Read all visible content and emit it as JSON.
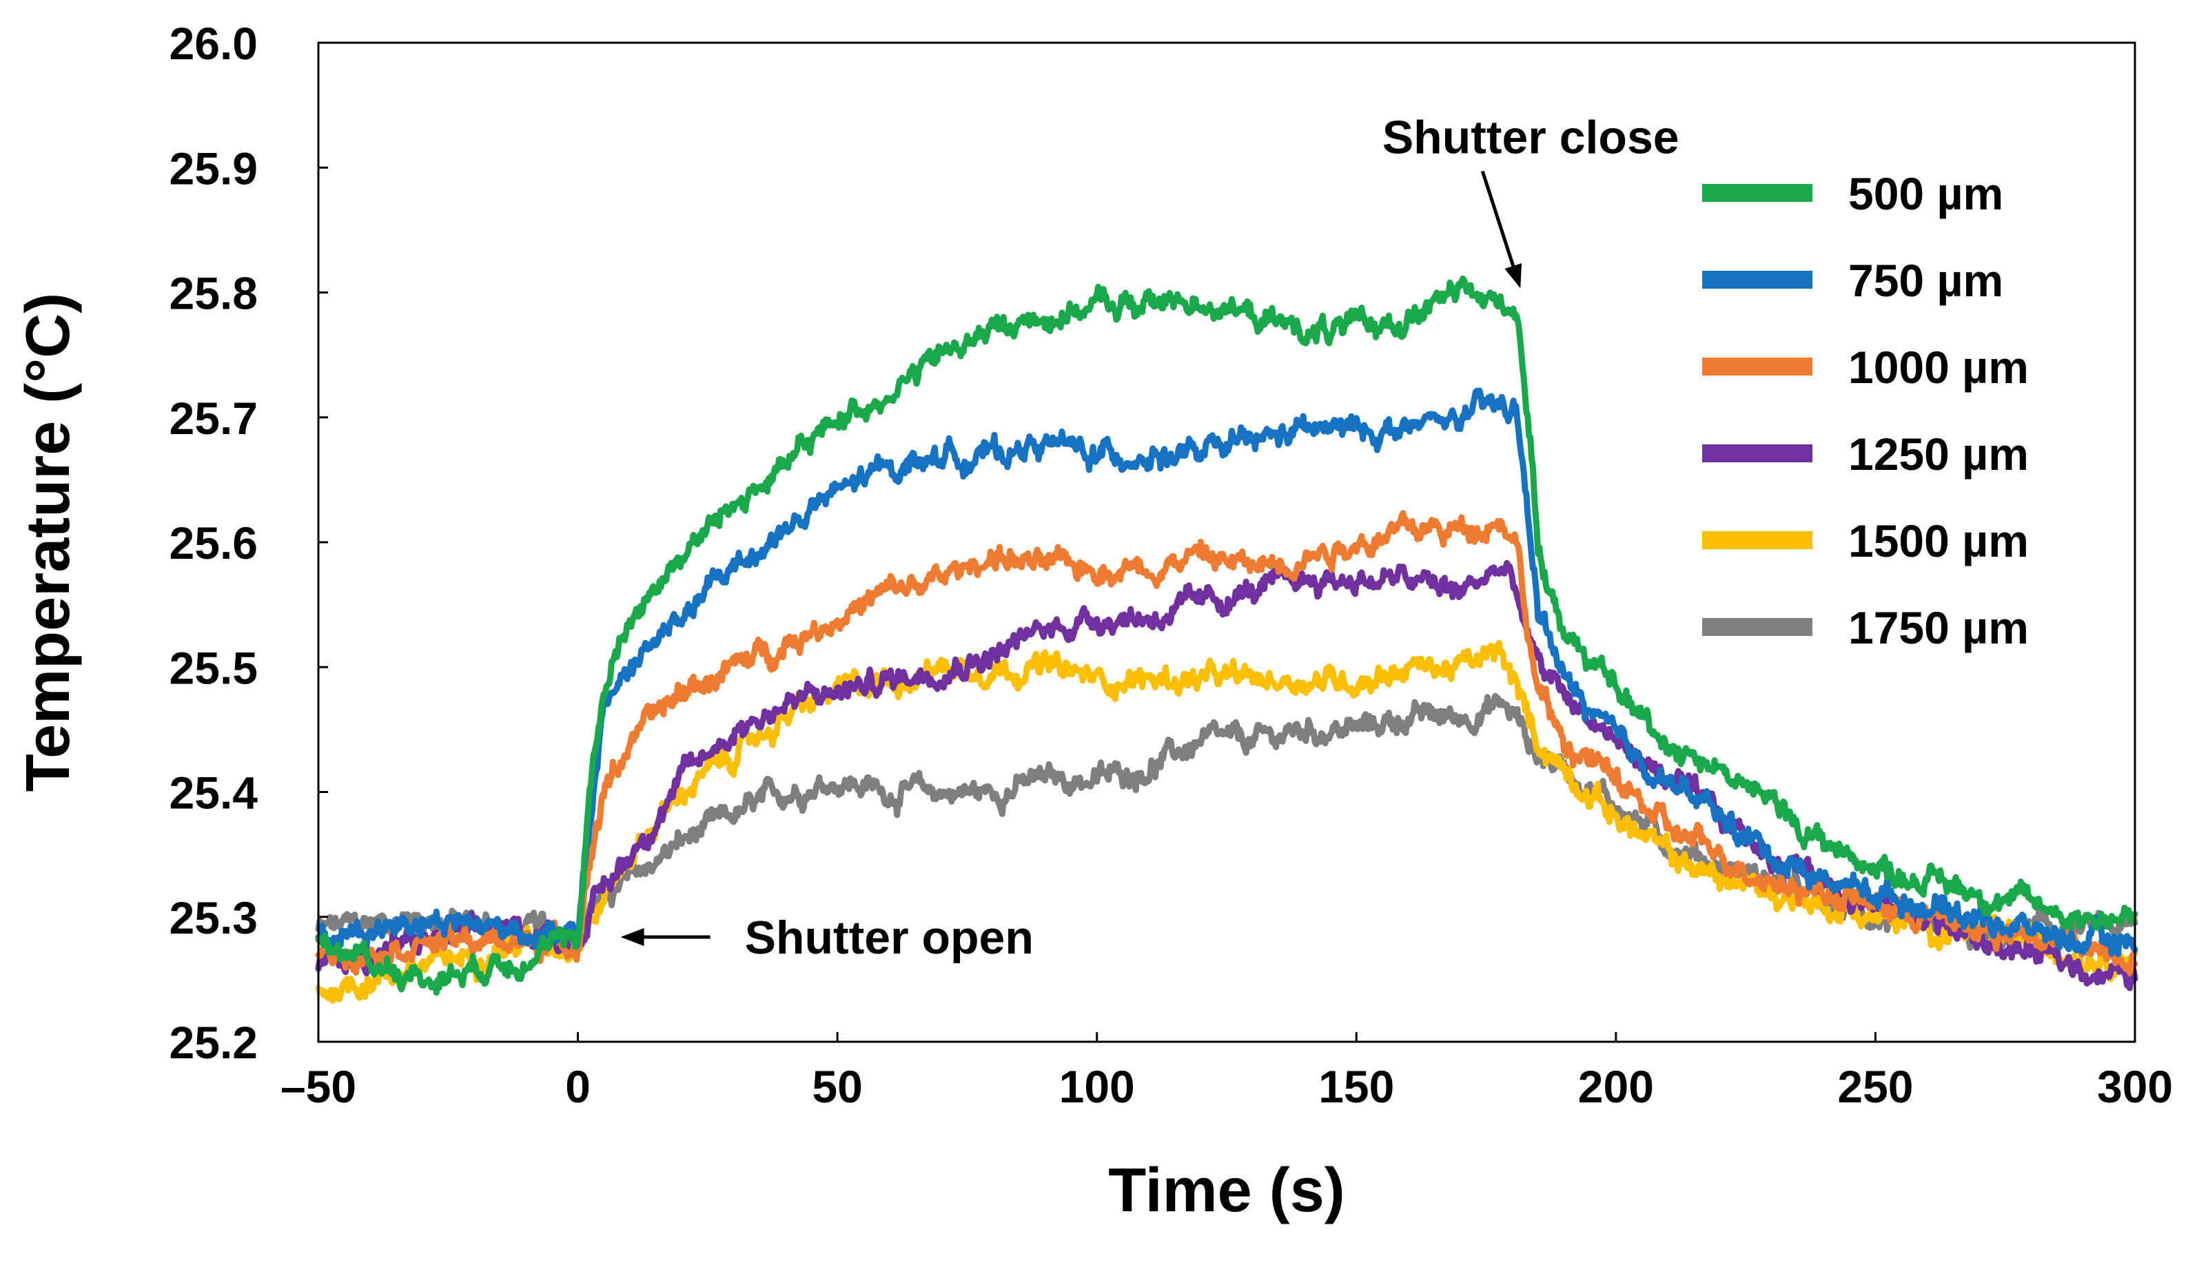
{
  "chart_data": {
    "type": "line",
    "title": "",
    "xlabel": "Time (s)",
    "ylabel": "Temperature (°C)",
    "xlim": [
      -50,
      300
    ],
    "ylim": [
      25.2,
      26.0
    ],
    "xticks": [
      -50,
      0,
      50,
      100,
      150,
      200,
      250,
      300
    ],
    "xtick_labels": [
      "–50",
      "0",
      "50",
      "100",
      "150",
      "200",
      "250",
      "300"
    ],
    "yticks": [
      25.2,
      25.3,
      25.4,
      25.5,
      25.6,
      25.7,
      25.8,
      25.9,
      26.0
    ],
    "ytick_labels": [
      "25.2",
      "25.3",
      "25.4",
      "25.5",
      "25.6",
      "25.7",
      "25.8",
      "25.9",
      "26.0"
    ],
    "grid": false,
    "legend_position": "top-right",
    "annotations": [
      {
        "text": "Shutter open",
        "x": 0,
        "y": 25.285
      },
      {
        "text": "Shutter close",
        "x": 180,
        "y": 25.81
      }
    ],
    "series": [
      {
        "name": "500 µm",
        "color": "#1aa94a",
        "x": [
          -50,
          -30,
          -10,
          0,
          1,
          2,
          5,
          10,
          20,
          30,
          40,
          50,
          60,
          70,
          80,
          90,
          100,
          110,
          120,
          130,
          140,
          150,
          160,
          170,
          178,
          181,
          183,
          185,
          190,
          200,
          210,
          220,
          230,
          240,
          250,
          260,
          270,
          280,
          290,
          300
        ],
        "values": [
          25.28,
          25.25,
          25.27,
          25.28,
          25.33,
          25.4,
          25.48,
          25.54,
          25.59,
          25.63,
          25.66,
          25.7,
          25.72,
          25.75,
          25.77,
          25.78,
          25.79,
          25.79,
          25.795,
          25.78,
          25.77,
          25.77,
          25.78,
          25.8,
          25.79,
          25.79,
          25.7,
          25.6,
          25.53,
          25.48,
          25.44,
          25.42,
          25.39,
          25.36,
          25.34,
          25.33,
          25.32,
          25.31,
          25.3,
          25.3
        ]
      },
      {
        "name": "750 µm",
        "color": "#1673c4",
        "x": [
          -50,
          -30,
          -10,
          0,
          1,
          3,
          5,
          10,
          20,
          30,
          40,
          50,
          60,
          70,
          80,
          90,
          100,
          110,
          120,
          130,
          140,
          150,
          160,
          170,
          178,
          181,
          183,
          185,
          190,
          200,
          210,
          220,
          230,
          240,
          250,
          260,
          270,
          280,
          290,
          300
        ],
        "values": [
          25.28,
          25.3,
          25.29,
          25.28,
          25.33,
          25.4,
          25.47,
          25.5,
          25.54,
          25.58,
          25.61,
          25.64,
          25.66,
          25.67,
          25.67,
          25.68,
          25.67,
          25.67,
          25.67,
          25.68,
          25.69,
          25.69,
          25.69,
          25.7,
          25.71,
          25.7,
          25.62,
          25.55,
          25.49,
          25.44,
          25.41,
          25.38,
          25.35,
          25.33,
          25.32,
          25.31,
          25.3,
          25.29,
          25.28,
          25.28
        ]
      },
      {
        "name": "1000 µm",
        "color": "#ee7b30",
        "x": [
          -50,
          -30,
          -10,
          0,
          2,
          5,
          10,
          20,
          30,
          40,
          50,
          60,
          70,
          80,
          90,
          100,
          110,
          120,
          130,
          140,
          150,
          160,
          170,
          178,
          181,
          183,
          185,
          190,
          200,
          210,
          220,
          230,
          240,
          250,
          260,
          270,
          280,
          290,
          300
        ],
        "values": [
          25.27,
          25.28,
          25.28,
          25.28,
          25.34,
          25.4,
          25.44,
          25.48,
          25.5,
          25.52,
          25.54,
          25.56,
          25.57,
          25.59,
          25.58,
          25.58,
          25.58,
          25.59,
          25.58,
          25.59,
          25.6,
          25.61,
          25.61,
          25.62,
          25.6,
          25.53,
          25.48,
          25.44,
          25.41,
          25.37,
          25.35,
          25.33,
          25.32,
          25.31,
          25.3,
          25.29,
          25.28,
          25.28,
          25.27
        ]
      },
      {
        "name": "1250 µm",
        "color": "#7130a0",
        "x": [
          -50,
          -30,
          -10,
          0,
          3,
          10,
          20,
          30,
          40,
          50,
          60,
          70,
          80,
          90,
          100,
          110,
          120,
          130,
          140,
          150,
          160,
          170,
          178,
          181,
          183,
          185,
          190,
          200,
          210,
          220,
          230,
          240,
          250,
          260,
          270,
          280,
          290,
          300
        ],
        "values": [
          25.26,
          25.28,
          25.29,
          25.28,
          25.31,
          25.35,
          25.41,
          25.45,
          25.47,
          25.48,
          25.49,
          25.5,
          25.51,
          25.53,
          25.54,
          25.54,
          25.55,
          25.56,
          25.57,
          25.57,
          25.57,
          25.56,
          25.58,
          25.56,
          25.52,
          25.5,
          25.48,
          25.44,
          25.41,
          25.38,
          25.35,
          25.33,
          25.31,
          25.3,
          25.28,
          25.27,
          25.26,
          25.25
        ]
      },
      {
        "name": "1500 µm",
        "color": "#fbbf00",
        "x": [
          -50,
          -40,
          -30,
          -10,
          0,
          3,
          10,
          20,
          30,
          40,
          50,
          60,
          70,
          80,
          90,
          100,
          110,
          120,
          130,
          140,
          150,
          160,
          170,
          178,
          181,
          183,
          185,
          190,
          200,
          210,
          220,
          230,
          240,
          250,
          260,
          270,
          280,
          290,
          300
        ],
        "values": [
          25.24,
          25.25,
          25.26,
          25.28,
          25.28,
          25.3,
          25.35,
          25.4,
          25.43,
          25.46,
          25.48,
          25.49,
          25.5,
          25.5,
          25.5,
          25.49,
          25.49,
          25.49,
          25.49,
          25.49,
          25.49,
          25.5,
          25.5,
          25.51,
          25.48,
          25.46,
          25.44,
          25.42,
          25.38,
          25.35,
          25.33,
          25.32,
          25.31,
          25.3,
          25.29,
          25.29,
          25.28,
          25.27,
          25.27
        ]
      },
      {
        "name": "1750 µm",
        "color": "#7f7f7f",
        "x": [
          -50,
          -30,
          -10,
          0,
          3,
          10,
          20,
          30,
          40,
          50,
          60,
          70,
          80,
          90,
          100,
          110,
          120,
          130,
          140,
          150,
          160,
          170,
          178,
          181,
          183,
          185,
          190,
          200,
          210,
          220,
          230,
          240,
          250,
          260,
          270,
          280,
          290,
          300
        ],
        "values": [
          25.29,
          25.3,
          25.29,
          25.29,
          25.31,
          25.33,
          25.36,
          25.38,
          25.4,
          25.41,
          25.4,
          25.4,
          25.4,
          25.41,
          25.41,
          25.42,
          25.44,
          25.44,
          25.45,
          25.45,
          25.46,
          25.46,
          25.47,
          25.46,
          25.44,
          25.43,
          25.42,
          25.39,
          25.36,
          25.34,
          25.33,
          25.31,
          25.3,
          25.29,
          25.28,
          25.29,
          25.29,
          25.29
        ]
      }
    ]
  }
}
